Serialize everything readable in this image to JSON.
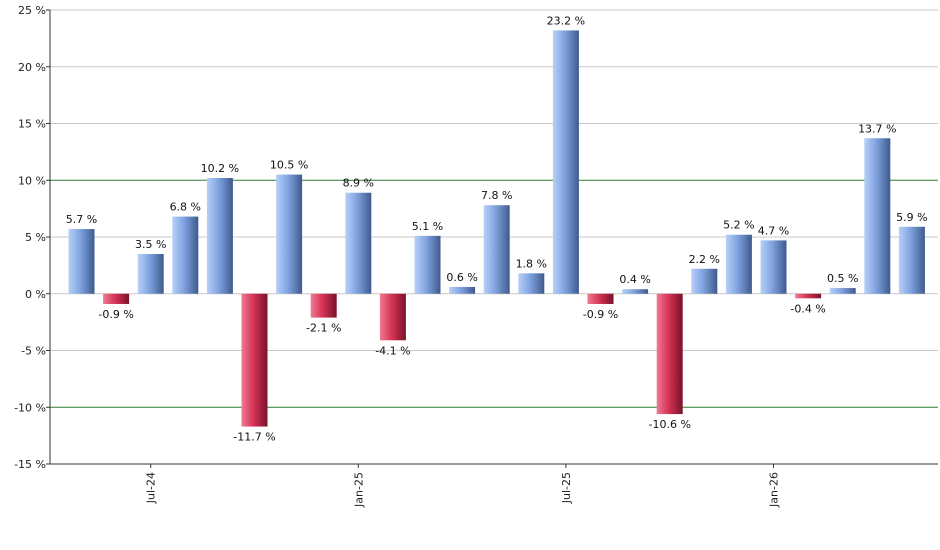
{
  "chart_data": {
    "type": "bar",
    "title": "",
    "xlabel": "",
    "ylabel": "",
    "ylim": [
      -15,
      25
    ],
    "y_ticks": [
      25,
      20,
      15,
      10,
      5,
      0,
      -5,
      -10,
      -15
    ],
    "y_tick_labels": [
      "25 %",
      "20 %",
      "15 %",
      "10 %",
      "5 %",
      "0 %",
      "-5 %",
      "-10 %",
      "-15 %"
    ],
    "x_tick_labels": [
      {
        "label": "Jul-24",
        "bar_index": 2
      },
      {
        "label": "Jan-25",
        "bar_index": 8
      },
      {
        "label": "Jul-25",
        "bar_index": 14
      },
      {
        "label": "Jan-26",
        "bar_index": 20
      }
    ],
    "values": [
      5.7,
      -0.9,
      3.5,
      6.8,
      10.2,
      -11.7,
      10.5,
      -2.1,
      8.9,
      -4.1,
      5.1,
      0.6,
      7.8,
      1.8,
      23.2,
      -0.9,
      0.4,
      -10.6,
      2.2,
      5.2,
      4.7,
      -0.4,
      0.5,
      13.7,
      5.9
    ],
    "value_labels": [
      "5.7 %",
      "-0.9 %",
      "3.5 %",
      "6.8 %",
      "10.2 %",
      "-11.7 %",
      "10.5 %",
      "-2.1 %",
      "8.9 %",
      "-4.1 %",
      "5.1 %",
      "0.6 %",
      "7.8 %",
      "1.8 %",
      "23.2 %",
      "-0.9 %",
      "0.4 %",
      "-10.6 %",
      "2.2 %",
      "5.2 %",
      "4.7 %",
      "-0.4 %",
      "0.5 %",
      "13.7 %",
      "5.9 %"
    ],
    "reference_lines": [
      10,
      -10
    ],
    "grid": true,
    "legend": "none",
    "colors": {
      "positive_light": "#b8d0f8",
      "positive_mid": "#7fa3e0",
      "positive_dark": "#3f5a8c",
      "negative_light": "#f07a92",
      "negative_mid": "#d63456",
      "negative_dark": "#7a1228",
      "grid": "#c8c8c8",
      "reference": "#2e7d32",
      "axis": "#333333"
    }
  }
}
